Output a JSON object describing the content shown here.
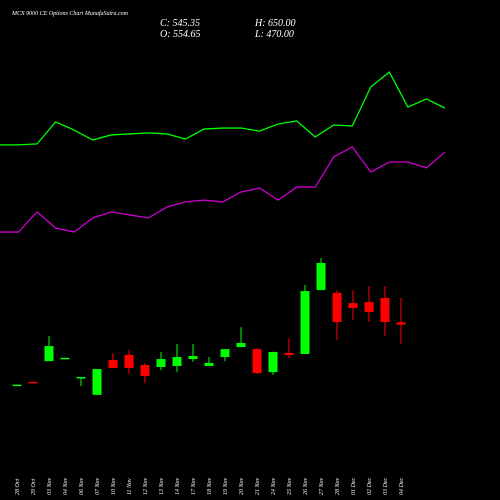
{
  "chart_data": {
    "type": "candlestick",
    "title": "MCX 9000 CE Options Chart MunafaSutra.com",
    "header": {
      "close": "C: 545.35",
      "open": "O: 554.65",
      "high": "H: 650.00",
      "low": "L: 470.00"
    },
    "categories": [
      "28 Oct",
      "29 Oct",
      "03 Nov",
      "04 Nov",
      "06 Nov",
      "07 Nov",
      "10 Nov",
      "11 Nov",
      "12 Nov",
      "13 Nov",
      "14 Nov",
      "17 Nov",
      "18 Nov",
      "19 Nov",
      "20 Nov",
      "21 Nov",
      "24 Nov",
      "25 Nov",
      "26 Nov",
      "27 Nov",
      "28 Nov",
      "01 Dec",
      "02 Dec",
      "03 Dec",
      "04 Dec"
    ],
    "open": [
      310,
      322,
      403,
      413,
      339,
      271,
      407,
      427,
      388,
      380,
      384,
      411,
      384,
      419,
      458,
      450,
      360,
      435,
      431,
      681,
      670,
      630,
      634,
      650,
      554.65
    ],
    "high": [
      311,
      322,
      501,
      416,
      341,
      372,
      435,
      447,
      396,
      439,
      470,
      470,
      419,
      450,
      536,
      454,
      439,
      493,
      701,
      806,
      681,
      681,
      697,
      697,
      650
    ],
    "low": [
      310,
      320,
      403,
      413,
      305,
      271,
      376,
      353,
      317,
      368,
      360,
      400,
      384,
      403,
      458,
      353,
      349,
      415,
      431,
      681,
      486,
      564,
      556,
      501,
      470
    ],
    "close": [
      311,
      320,
      462,
      416,
      341,
      372,
      376,
      376,
      345,
      411,
      419,
      423,
      396,
      450,
      474,
      356,
      439,
      427,
      677,
      787,
      556,
      611,
      595,
      556,
      545.35
    ],
    "up_color": "#00ff00",
    "down_color": "#ff0000",
    "series": [
      {
        "color": "#00ff00",
        "values": [
          1249,
          1249,
          1253,
          1339,
          1307,
          1268,
          1288,
          1292,
          1296,
          1292,
          1272,
          1311,
          1315,
          1315,
          1303,
          1331,
          1343,
          1280,
          1327,
          1323,
          1476,
          1534,
          1397,
          1429,
          1393
        ]
      },
      {
        "color": "#cc00cc",
        "values": [
          908,
          908,
          987,
          924,
          908,
          963,
          987,
          975,
          963,
          1006,
          1026,
          1033,
          1026,
          1065,
          1080,
          1033,
          1084,
          1084,
          1202,
          1241,
          1143,
          1182,
          1182,
          1159,
          1221
        ]
      }
    ],
    "ylim": [
      -23,
      1816
    ]
  }
}
